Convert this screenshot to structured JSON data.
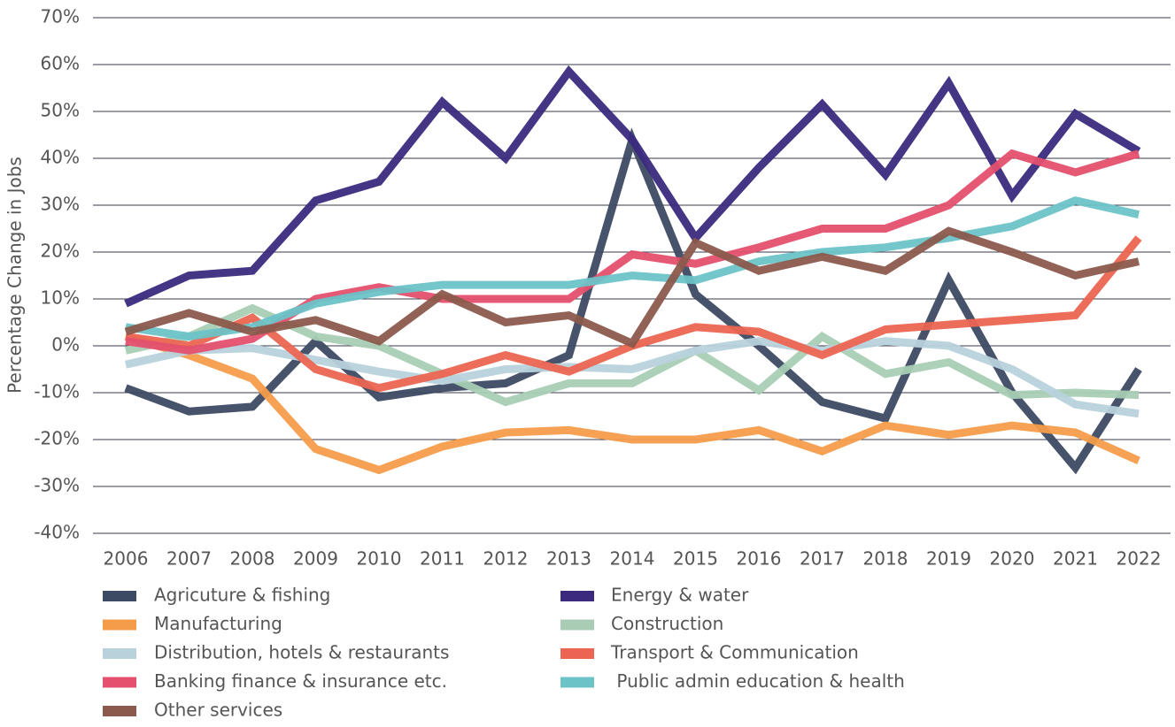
{
  "chart_data": {
    "type": "line",
    "y_label": "Percentage Change in Jobs",
    "categories": [
      "2006",
      "2007",
      "2008",
      "2009",
      "2010",
      "2011",
      "2012",
      "2013",
      "2014",
      "2015",
      "2016",
      "2017",
      "2018",
      "2019",
      "2020",
      "2021",
      "2022"
    ],
    "ylim": [
      -40,
      70
    ],
    "yticks": [
      {
        "value": -40,
        "label": "-40%"
      },
      {
        "value": -30,
        "label": "-30%"
      },
      {
        "value": -20,
        "label": "-20%"
      },
      {
        "value": -10,
        "label": "-10%"
      },
      {
        "value": 0,
        "label": "0%"
      },
      {
        "value": 10,
        "label": "10%"
      },
      {
        "value": 20,
        "label": "20%"
      },
      {
        "value": 30,
        "label": "30%"
      },
      {
        "value": 40,
        "label": "40%"
      },
      {
        "value": 50,
        "label": "50%"
      },
      {
        "value": 60,
        "label": "60%"
      },
      {
        "value": 70,
        "label": "70%"
      }
    ],
    "grid": true,
    "series": [
      {
        "name": "Agricuture & fishing",
        "color": "#3d4a63",
        "values": [
          -9,
          -14,
          -13,
          1,
          -11,
          -9,
          -8,
          -2,
          44,
          11,
          0,
          -12,
          -15.5,
          14,
          -10,
          -26,
          -5
        ]
      },
      {
        "name": "Energy & water",
        "color": "#3b2a7e",
        "values": [
          9,
          15,
          16,
          31,
          35,
          52,
          40,
          58.5,
          44,
          23,
          38,
          51.5,
          36.5,
          56,
          32,
          49.5,
          41.5
        ]
      },
      {
        "name": "Manufacturing",
        "color": "#f59c4a",
        "values": [
          2,
          -2,
          -7,
          -22,
          -26.5,
          -21.5,
          -18.5,
          -18,
          -20,
          -20,
          -18,
          -22.5,
          -17,
          -19,
          -17,
          -18.5,
          -24.5
        ]
      },
      {
        "name": "Construction",
        "color": "#a8cdb4",
        "values": [
          -1,
          2,
          8,
          2,
          0,
          -6,
          -12,
          -8,
          -8,
          -1,
          -9.5,
          2,
          -6,
          -3.5,
          -10.5,
          -10,
          -10.5
        ]
      },
      {
        "name": "Distribution, hotels & restaurants",
        "color": "#b8d2dc",
        "values": [
          -4,
          -1,
          -0.5,
          -3,
          -5.5,
          -7.5,
          -5,
          -4.5,
          -5,
          -1,
          1,
          -1,
          1,
          0,
          -5,
          -12.5,
          -14.5
        ]
      },
      {
        "name": "Transport & Communication",
        "color": "#ec6552",
        "values": [
          2,
          0,
          6,
          -5,
          -9,
          -6,
          -2,
          -5.5,
          0,
          4,
          3,
          -2,
          3.5,
          4.5,
          5.5,
          6.5,
          23
        ]
      },
      {
        "name": "Banking finance & insurance etc.",
        "color": "#e4506e",
        "values": [
          1,
          -1,
          1.5,
          10,
          12.5,
          10,
          10,
          10,
          19.5,
          17.5,
          21,
          25,
          25,
          30,
          41,
          37,
          41
        ]
      },
      {
        "name": " Public admin education & health",
        "color": "#6cc3c7",
        "values": [
          4,
          2,
          4,
          9,
          11.5,
          13,
          13,
          13,
          15,
          14,
          18,
          20,
          21,
          23,
          25.5,
          31,
          28
        ]
      },
      {
        "name": "Other services",
        "color": "#8b5a4c",
        "values": [
          3,
          7,
          3,
          5.5,
          1,
          11,
          5,
          6.5,
          0.5,
          22,
          16,
          19,
          16,
          24.5,
          20,
          15,
          18
        ]
      }
    ]
  }
}
